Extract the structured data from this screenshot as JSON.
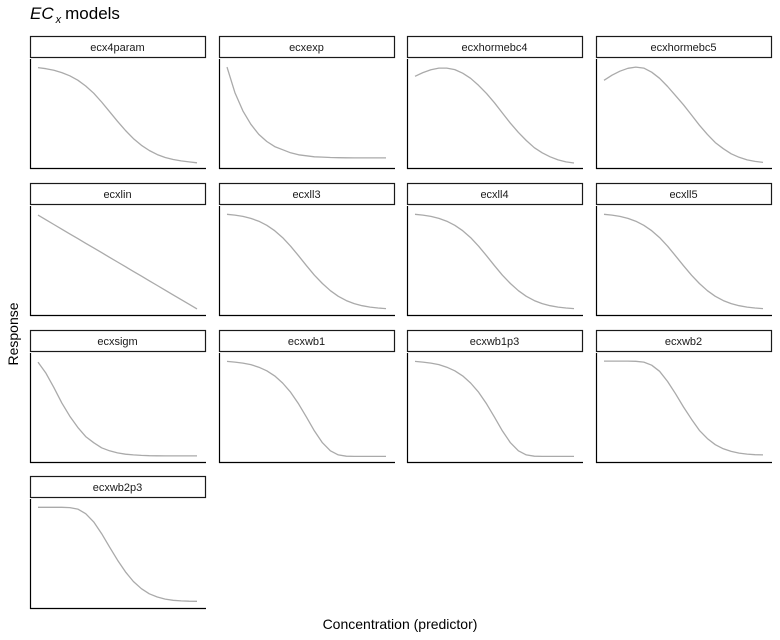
{
  "title": {
    "main": "EC",
    "subscript": "x",
    "rest": "models"
  },
  "chart_data": {
    "type": "line",
    "title": "EC x models",
    "xlabel": "Concentration (predictor)",
    "ylabel": "Response",
    "grid": false,
    "colors": {
      "line": "#aaaaaa",
      "panel_border": "#000000",
      "strip_fill": "#ffffff"
    },
    "x": [
      0.0,
      0.05,
      0.1,
      0.15,
      0.2,
      0.25,
      0.3,
      0.35,
      0.4,
      0.45,
      0.5,
      0.55,
      0.6,
      0.65,
      0.7,
      0.75,
      0.8,
      0.85,
      0.9,
      0.95,
      1.0
    ],
    "xlim": [
      0,
      1
    ],
    "ylim": [
      0,
      1
    ],
    "panels": [
      {
        "name": "ecx4param",
        "values": [
          0.955,
          0.944,
          0.928,
          0.906,
          0.875,
          0.831,
          0.775,
          0.704,
          0.618,
          0.524,
          0.428,
          0.338,
          0.259,
          0.193,
          0.142,
          0.102,
          0.074,
          0.054,
          0.04,
          0.03,
          0.022
        ]
      },
      {
        "name": "ecxexp",
        "values": [
          0.96,
          0.71,
          0.53,
          0.4,
          0.3,
          0.23,
          0.18,
          0.15,
          0.12,
          0.1,
          0.09,
          0.08,
          0.077,
          0.074,
          0.072,
          0.071,
          0.07,
          0.07,
          0.07,
          0.07,
          0.07
        ]
      },
      {
        "name": "ecxhormebc4",
        "values": [
          0.87,
          0.906,
          0.933,
          0.95,
          0.95,
          0.935,
          0.9,
          0.85,
          0.78,
          0.7,
          0.61,
          0.51,
          0.41,
          0.32,
          0.24,
          0.17,
          0.12,
          0.08,
          0.05,
          0.03,
          0.02
        ]
      },
      {
        "name": "ecxhormebc5",
        "values": [
          0.83,
          0.88,
          0.92,
          0.948,
          0.96,
          0.95,
          0.91,
          0.85,
          0.77,
          0.68,
          0.59,
          0.49,
          0.39,
          0.3,
          0.22,
          0.16,
          0.11,
          0.075,
          0.05,
          0.035,
          0.025
        ]
      },
      {
        "name": "ecxlin",
        "values": [
          0.95,
          0.904,
          0.858,
          0.812,
          0.766,
          0.72,
          0.674,
          0.628,
          0.582,
          0.536,
          0.49,
          0.444,
          0.398,
          0.352,
          0.306,
          0.26,
          0.214,
          0.168,
          0.122,
          0.076,
          0.03
        ]
      },
      {
        "name": "ecxll3",
        "values": [
          0.958,
          0.95,
          0.937,
          0.918,
          0.89,
          0.85,
          0.797,
          0.729,
          0.645,
          0.551,
          0.454,
          0.361,
          0.279,
          0.209,
          0.154,
          0.112,
          0.082,
          0.062,
          0.048,
          0.039,
          0.033
        ]
      },
      {
        "name": "ecxll4",
        "values": [
          0.958,
          0.95,
          0.937,
          0.918,
          0.89,
          0.85,
          0.797,
          0.729,
          0.645,
          0.551,
          0.454,
          0.361,
          0.279,
          0.209,
          0.154,
          0.112,
          0.082,
          0.062,
          0.048,
          0.039,
          0.033
        ]
      },
      {
        "name": "ecxll5",
        "values": [
          0.958,
          0.95,
          0.937,
          0.918,
          0.89,
          0.85,
          0.797,
          0.729,
          0.645,
          0.551,
          0.454,
          0.361,
          0.279,
          0.209,
          0.154,
          0.112,
          0.082,
          0.062,
          0.048,
          0.039,
          0.033
        ]
      },
      {
        "name": "ecxsigm",
        "values": [
          0.95,
          0.84,
          0.7,
          0.55,
          0.42,
          0.31,
          0.22,
          0.16,
          0.11,
          0.08,
          0.06,
          0.047,
          0.04,
          0.035,
          0.032,
          0.031,
          0.03,
          0.03,
          0.03,
          0.03,
          0.03
        ]
      },
      {
        "name": "ecxwb1",
        "values": [
          0.957,
          0.95,
          0.94,
          0.925,
          0.9,
          0.865,
          0.815,
          0.745,
          0.655,
          0.54,
          0.41,
          0.275,
          0.16,
          0.08,
          0.04,
          0.027,
          0.025,
          0.025,
          0.025,
          0.025,
          0.025
        ]
      },
      {
        "name": "ecxwb1p3",
        "values": [
          0.957,
          0.95,
          0.94,
          0.925,
          0.9,
          0.865,
          0.815,
          0.745,
          0.655,
          0.54,
          0.41,
          0.275,
          0.16,
          0.08,
          0.04,
          0.027,
          0.025,
          0.025,
          0.025,
          0.025,
          0.025
        ]
      },
      {
        "name": "ecxwb2",
        "values": [
          0.96,
          0.96,
          0.96,
          0.96,
          0.958,
          0.95,
          0.92,
          0.86,
          0.76,
          0.64,
          0.51,
          0.39,
          0.28,
          0.2,
          0.14,
          0.1,
          0.075,
          0.058,
          0.048,
          0.042,
          0.04
        ]
      },
      {
        "name": "ecxwb2p3",
        "values": [
          0.958,
          0.958,
          0.958,
          0.958,
          0.955,
          0.94,
          0.895,
          0.815,
          0.7,
          0.57,
          0.44,
          0.325,
          0.23,
          0.16,
          0.11,
          0.078,
          0.058,
          0.046,
          0.04,
          0.037,
          0.036
        ]
      }
    ]
  }
}
